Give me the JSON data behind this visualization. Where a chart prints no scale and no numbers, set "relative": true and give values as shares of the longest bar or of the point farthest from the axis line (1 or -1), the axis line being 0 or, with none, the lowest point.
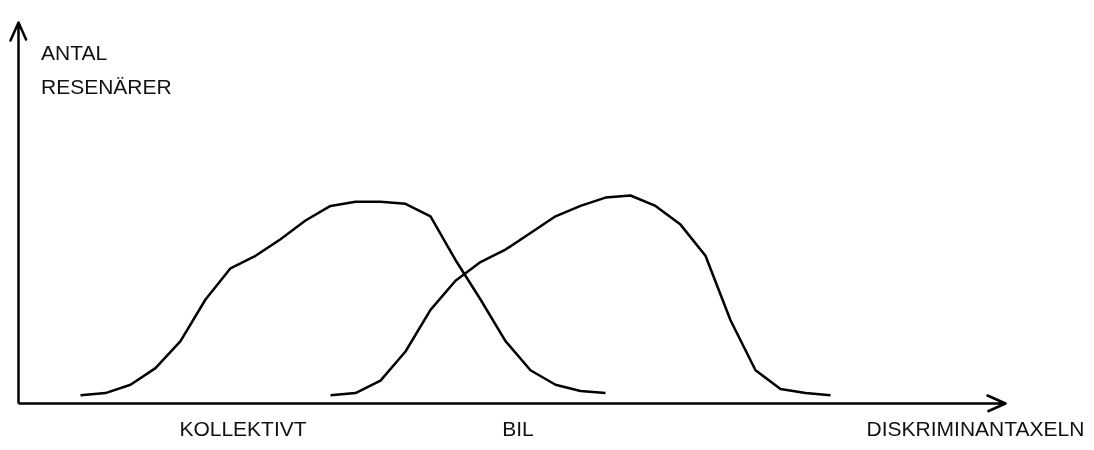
{
  "chart_data": {
    "type": "line",
    "relative": true,
    "xlabel": "DISKRIMINANTAXELN",
    "ylabel": "ANTAL RESENÄRER",
    "categories": [
      null,
      null,
      null,
      null,
      null,
      null,
      null,
      null,
      null,
      null,
      null,
      null,
      null,
      null,
      null,
      null,
      null,
      null,
      null,
      null,
      null,
      null,
      null,
      null,
      null,
      null,
      null,
      null,
      null,
      null,
      null
    ],
    "series": [
      {
        "color": "#000000",
        "values": [
          0.04,
          0.05,
          0.09,
          0.17,
          0.3,
          0.5,
          0.65,
          0.71,
          0.79,
          0.88,
          0.95,
          0.97,
          0.97,
          0.96,
          0.9,
          0.69,
          0.5,
          0.3,
          0.16,
          0.09,
          0.06,
          0.05,
          null,
          null,
          null,
          null,
          null,
          null,
          null,
          null,
          null
        ]
      },
      {
        "color": "#000000",
        "values": [
          null,
          null,
          null,
          null,
          null,
          null,
          null,
          null,
          null,
          null,
          0.04,
          0.05,
          0.11,
          0.25,
          0.45,
          0.59,
          0.68,
          0.74,
          0.82,
          0.9,
          0.95,
          0.99,
          1.0,
          0.95,
          0.86,
          0.71,
          0.4,
          0.16,
          0.07,
          0.05,
          0.04
        ]
      }
    ],
    "annotations": [
      "KOLLEKTIVT",
      "BIL"
    ],
    "grid": false,
    "marker": "none",
    "line_style": "solid"
  }
}
